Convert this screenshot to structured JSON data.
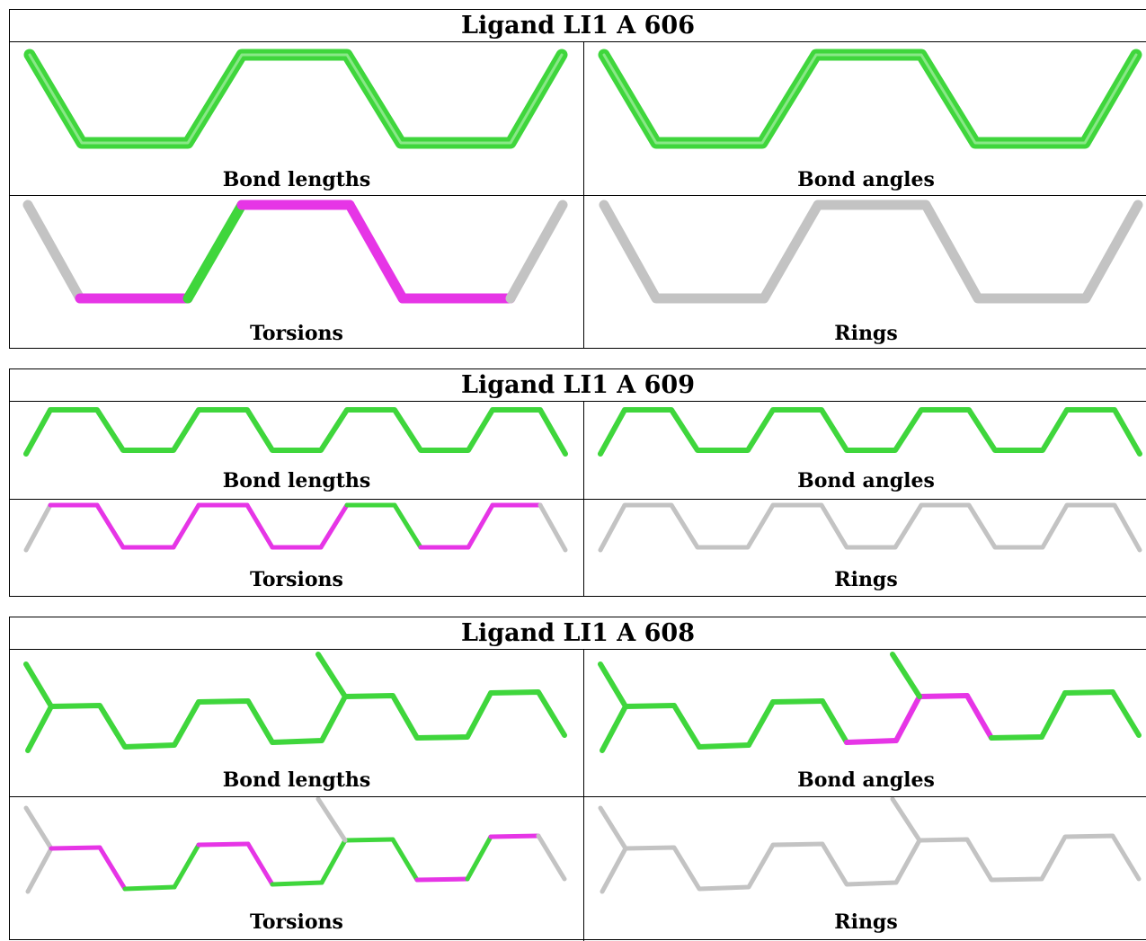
{
  "colors": {
    "ok": "#3fd63c",
    "outlier": "#e635e6",
    "na": "#c3c3c3"
  },
  "panels": [
    {
      "title": "Ligand LI1 A 606",
      "cells": [
        {
          "label": "Bond lengths",
          "state": "all-ok"
        },
        {
          "label": "Bond angles",
          "state": "all-ok"
        },
        {
          "label": "Torsions",
          "state": "mixed"
        },
        {
          "label": "Rings",
          "state": "none"
        }
      ]
    },
    {
      "title": "Ligand LI1 A 609",
      "cells": [
        {
          "label": "Bond lengths",
          "state": "all-ok"
        },
        {
          "label": "Bond angles",
          "state": "all-ok"
        },
        {
          "label": "Torsions",
          "state": "mixed"
        },
        {
          "label": "Rings",
          "state": "none"
        }
      ]
    },
    {
      "title": "Ligand LI1 A 608",
      "cells": [
        {
          "label": "Bond lengths",
          "state": "all-ok"
        },
        {
          "label": "Bond angles",
          "state": "mixed"
        },
        {
          "label": "Torsions",
          "state": "mixed"
        },
        {
          "label": "Rings",
          "state": "none"
        }
      ]
    }
  ]
}
